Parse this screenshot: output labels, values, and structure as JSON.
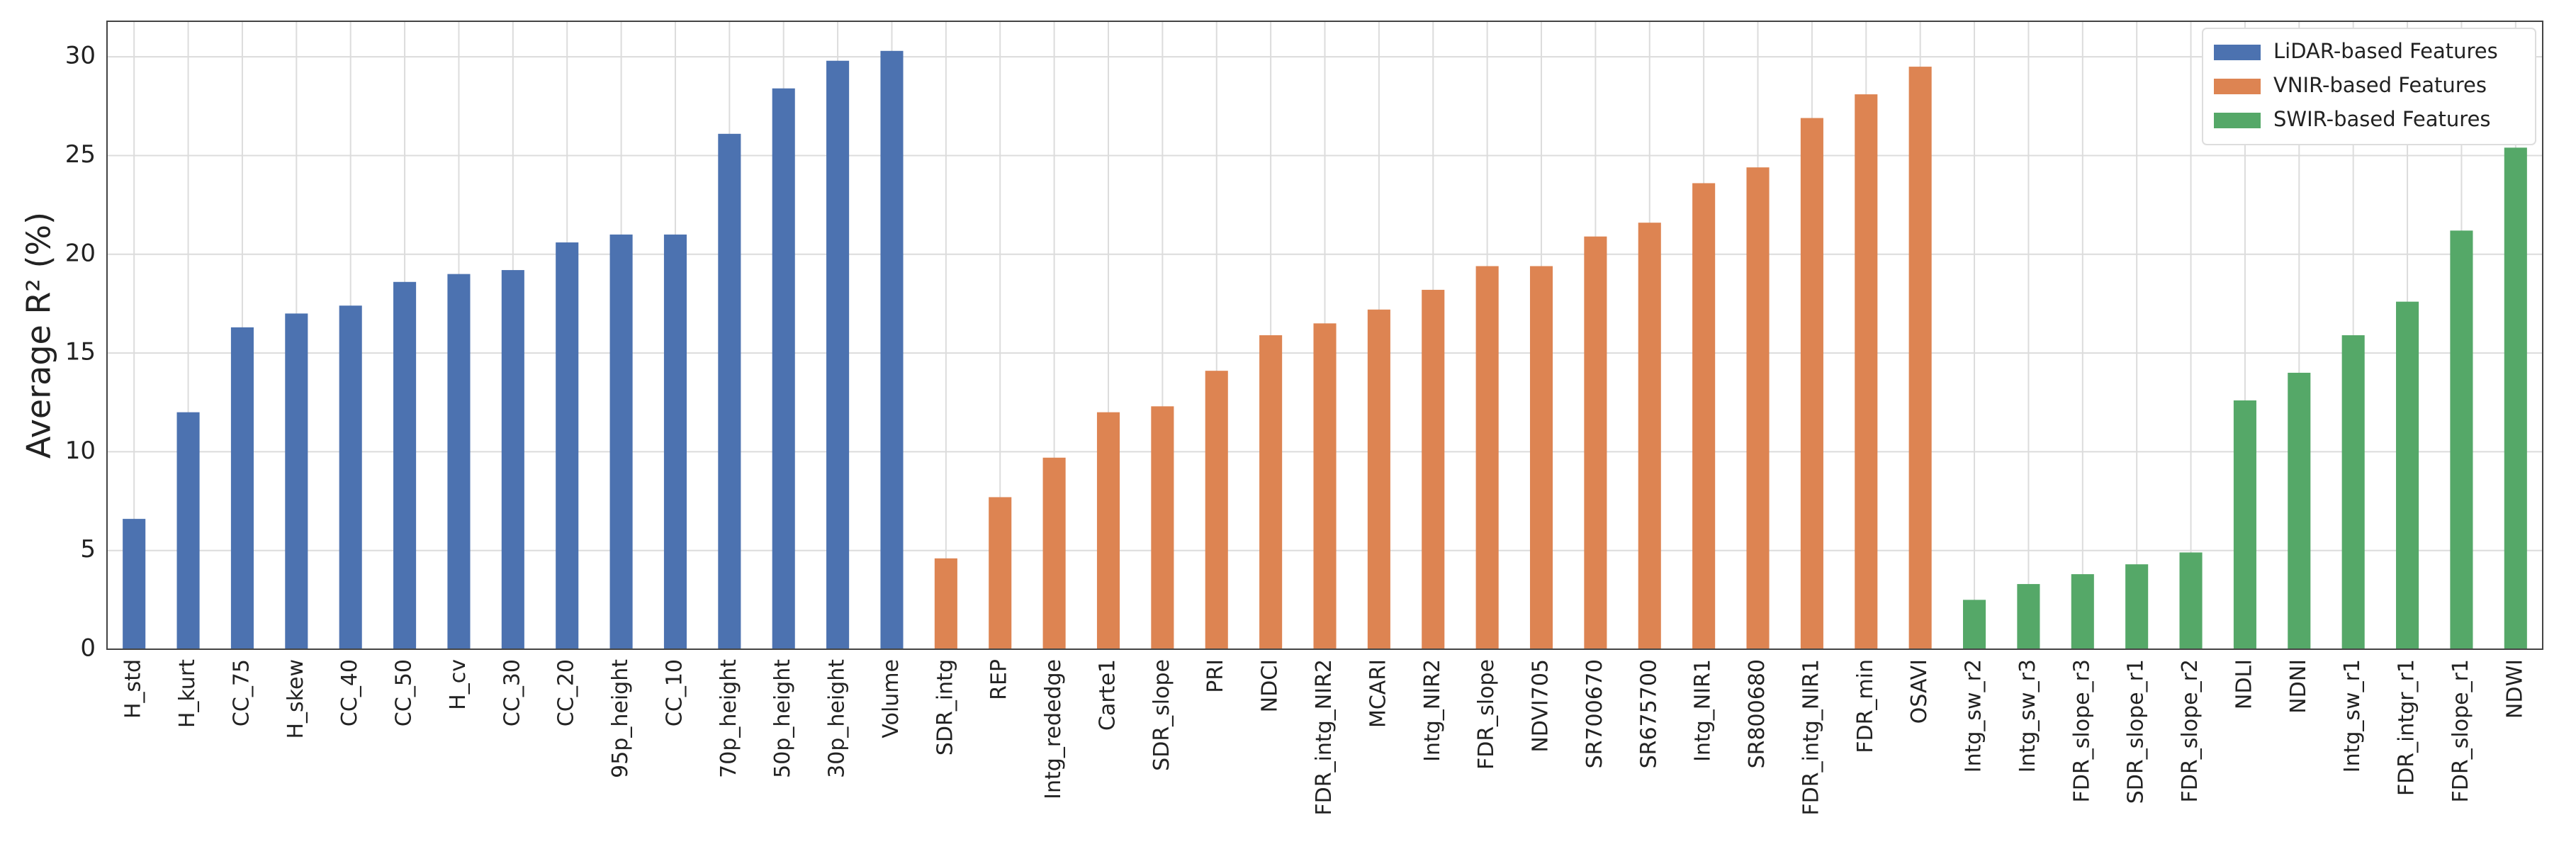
{
  "chart_data": {
    "type": "bar",
    "ylabel": "Average R² (%)",
    "categories": [
      "H_std",
      "H_kurt",
      "CC_75",
      "H_skew",
      "CC_40",
      "CC_50",
      "H_cv",
      "CC_30",
      "CC_20",
      "95p_height",
      "CC_10",
      "70p_height",
      "50p_height",
      "30p_height",
      "Volume",
      "SDR_intg",
      "REP",
      "Intg_rededge",
      "Carte1",
      "SDR_slope",
      "PRI",
      "NDCI",
      "FDR_intg_NIR2",
      "MCARI",
      "Intg_NIR2",
      "FDR_slope",
      "NDVI705",
      "SR700670",
      "SR675700",
      "Intg_NIR1",
      "SR800680",
      "FDR_intg_NIR1",
      "FDR_min",
      "OSAVI",
      "Intg_sw_r2",
      "Intg_sw_r3",
      "FDR_slope_r3",
      "SDR_slope_r1",
      "FDR_slope_r2",
      "NDLI",
      "NDNI",
      "Intg_sw_r1",
      "FDR_intgr_r1",
      "FDR_slope_r1",
      "NDWI"
    ],
    "series": [
      {
        "name": "LiDAR-based Features",
        "color": "#4c72b0",
        "values": [
          6.6,
          12.0,
          16.3,
          17.0,
          17.4,
          18.6,
          19.0,
          19.2,
          20.6,
          21.0,
          21.0,
          26.1,
          28.4,
          29.8,
          30.3,
          null,
          null,
          null,
          null,
          null,
          null,
          null,
          null,
          null,
          null,
          null,
          null,
          null,
          null,
          null,
          null,
          null,
          null,
          null,
          null,
          null,
          null,
          null,
          null,
          null,
          null,
          null,
          null,
          null,
          null
        ]
      },
      {
        "name": "VNIR-based Features",
        "color": "#dd8452",
        "values": [
          null,
          null,
          null,
          null,
          null,
          null,
          null,
          null,
          null,
          null,
          null,
          null,
          null,
          null,
          null,
          4.6,
          7.7,
          9.7,
          12.0,
          12.3,
          14.1,
          15.9,
          16.5,
          17.2,
          18.2,
          19.4,
          19.4,
          20.9,
          21.6,
          23.6,
          24.4,
          26.9,
          28.1,
          29.5,
          null,
          null,
          null,
          null,
          null,
          null,
          null,
          null,
          null,
          null,
          null
        ]
      },
      {
        "name": "SWIR-based Features",
        "color": "#55a868",
        "values": [
          null,
          null,
          null,
          null,
          null,
          null,
          null,
          null,
          null,
          null,
          null,
          null,
          null,
          null,
          null,
          null,
          null,
          null,
          null,
          null,
          null,
          null,
          null,
          null,
          null,
          null,
          null,
          null,
          null,
          null,
          null,
          null,
          null,
          null,
          2.5,
          3.3,
          3.8,
          4.3,
          4.9,
          12.6,
          14.0,
          15.9,
          17.6,
          21.2,
          25.4
        ]
      }
    ],
    "ylim": [
      0,
      31.8
    ],
    "yticks": [
      0,
      5,
      10,
      15,
      20,
      25,
      30
    ],
    "grid": true,
    "legend": "upper right"
  }
}
